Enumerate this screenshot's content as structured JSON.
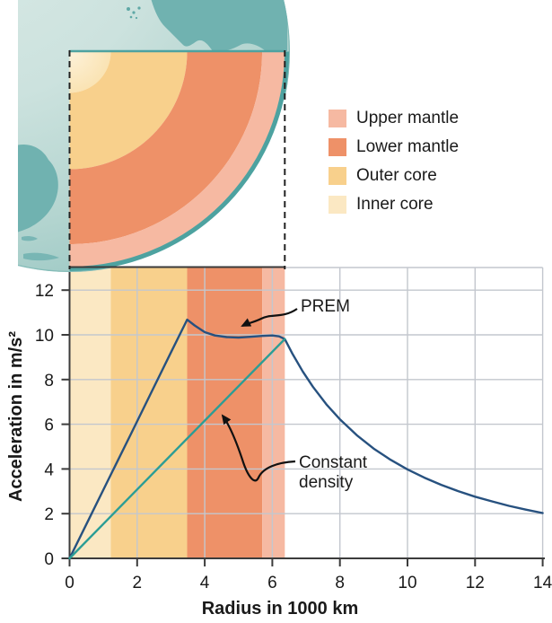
{
  "annotations": {
    "prem": "PREM",
    "constant_line1": "Constant",
    "constant_line2": "density"
  },
  "legend": {
    "items": [
      {
        "label": "Upper mantle",
        "color": "#F6B9A2"
      },
      {
        "label": "Lower mantle",
        "color": "#EE9168"
      },
      {
        "label": "Outer core",
        "color": "#F8D08C"
      },
      {
        "label": "Inner core",
        "color": "#FBE8C3"
      }
    ]
  },
  "earth": {
    "surface_radius": 6.37,
    "globe": {
      "ocean_light": "#DAEAE6",
      "ocean_mid": "#C2DCD8",
      "ocean_edge": "#9CC8C4",
      "land": "#70B2B0",
      "rim": "#4DA2A0"
    }
  },
  "chart_data": {
    "type": "line",
    "title": "",
    "xlabel": "Radius in 1000 km",
    "ylabel": "Acceleration in m/s²",
    "xlim": [
      0,
      14
    ],
    "ylim": [
      0,
      13
    ],
    "x_ticks": [
      0,
      2,
      4,
      6,
      8,
      10,
      12,
      14
    ],
    "y_ticks": [
      0,
      2,
      4,
      6,
      8,
      10,
      12
    ],
    "grid": true,
    "legend_position": "top-right",
    "grid_color": "#C3C7CE",
    "axis_color": "#3C3C3C",
    "bands": [
      {
        "label": "Inner core",
        "from": 0,
        "to": 1.22,
        "color": "#FBE8C3"
      },
      {
        "label": "Outer core",
        "from": 1.22,
        "to": 3.48,
        "color": "#F8D08C"
      },
      {
        "label": "Lower mantle",
        "from": 3.48,
        "to": 5.7,
        "color": "#EE9168"
      },
      {
        "label": "Upper mantle",
        "from": 5.7,
        "to": 6.37,
        "color": "#F6B9A2"
      }
    ],
    "series": [
      {
        "name": "PREM",
        "color": "#27517F",
        "points": [
          [
            0,
            0
          ],
          [
            0.6,
            1.84
          ],
          [
            1.22,
            3.74
          ],
          [
            1.8,
            5.52
          ],
          [
            2.4,
            7.37
          ],
          [
            3.0,
            9.21
          ],
          [
            3.48,
            10.68
          ],
          [
            3.7,
            10.42
          ],
          [
            4.0,
            10.12
          ],
          [
            4.3,
            9.97
          ],
          [
            4.65,
            9.9
          ],
          [
            5.0,
            9.88
          ],
          [
            5.35,
            9.91
          ],
          [
            5.7,
            9.95
          ],
          [
            6.0,
            9.97
          ],
          [
            6.2,
            9.93
          ],
          [
            6.37,
            9.81
          ],
          [
            6.6,
            9.14
          ],
          [
            6.9,
            8.36
          ],
          [
            7.2,
            7.68
          ],
          [
            7.6,
            6.89
          ],
          [
            8.0,
            6.22
          ],
          [
            8.5,
            5.51
          ],
          [
            9.0,
            4.91
          ],
          [
            9.5,
            4.41
          ],
          [
            10.0,
            3.98
          ],
          [
            10.5,
            3.61
          ],
          [
            11.0,
            3.29
          ],
          [
            11.5,
            3.01
          ],
          [
            12.0,
            2.76
          ],
          [
            12.5,
            2.55
          ],
          [
            13.0,
            2.35
          ],
          [
            13.5,
            2.18
          ],
          [
            14.0,
            2.03
          ]
        ]
      },
      {
        "name": "Constant density",
        "color": "#2B9D95",
        "points": [
          [
            0,
            0
          ],
          [
            6.37,
            9.81
          ]
        ]
      }
    ]
  }
}
